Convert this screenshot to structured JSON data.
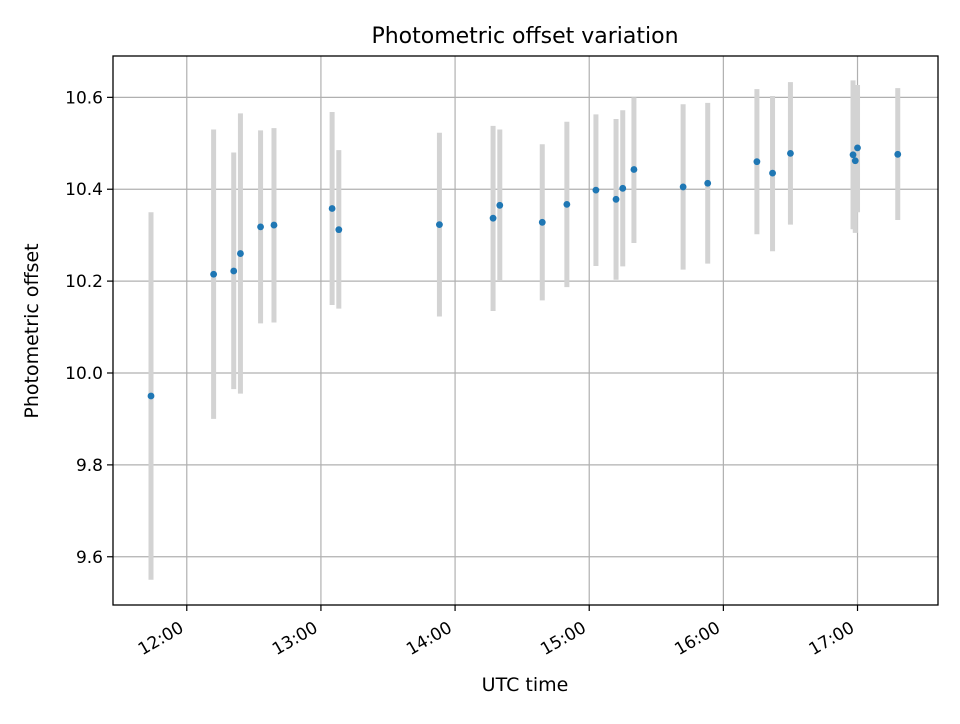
{
  "chart_data": {
    "type": "scatter",
    "title": "Photometric offset variation",
    "xlabel": "UTC time",
    "ylabel": "Photometric offset",
    "x_type": "time",
    "xlim": [
      "11:27",
      "17:36"
    ],
    "ylim": [
      9.495,
      10.69
    ],
    "x_ticks": [
      "12:00",
      "13:00",
      "14:00",
      "15:00",
      "16:00",
      "17:00"
    ],
    "y_ticks": [
      "9.6",
      "9.8",
      "10.0",
      "10.2",
      "10.4",
      "10.6"
    ],
    "grid": true,
    "colors": {
      "point": "#1f77b4",
      "errorbar": "#d3d3d3",
      "grid": "#b0b0b0"
    },
    "points": [
      {
        "time": "11:44",
        "y": 9.95,
        "err_low": 9.55,
        "err_high": 10.35
      },
      {
        "time": "12:12",
        "y": 10.215,
        "err_low": 9.9,
        "err_high": 10.53
      },
      {
        "time": "12:21",
        "y": 10.222,
        "err_low": 9.965,
        "err_high": 10.48
      },
      {
        "time": "12:24",
        "y": 10.26,
        "err_low": 9.955,
        "err_high": 10.565
      },
      {
        "time": "12:33",
        "y": 10.318,
        "err_low": 10.108,
        "err_high": 10.528
      },
      {
        "time": "12:39",
        "y": 10.322,
        "err_low": 10.11,
        "err_high": 10.533
      },
      {
        "time": "13:05",
        "y": 10.358,
        "err_low": 10.148,
        "err_high": 10.568
      },
      {
        "time": "13:08",
        "y": 10.312,
        "err_low": 10.14,
        "err_high": 10.485
      },
      {
        "time": "13:53",
        "y": 10.323,
        "err_low": 10.123,
        "err_high": 10.523
      },
      {
        "time": "14:17",
        "y": 10.337,
        "err_low": 10.135,
        "err_high": 10.538
      },
      {
        "time": "14:20",
        "y": 10.365,
        "err_low": 10.2,
        "err_high": 10.53
      },
      {
        "time": "14:39",
        "y": 10.328,
        "err_low": 10.158,
        "err_high": 10.498
      },
      {
        "time": "14:50",
        "y": 10.367,
        "err_low": 10.187,
        "err_high": 10.547
      },
      {
        "time": "15:03",
        "y": 10.398,
        "err_low": 10.233,
        "err_high": 10.563
      },
      {
        "time": "15:12",
        "y": 10.378,
        "err_low": 10.203,
        "err_high": 10.553
      },
      {
        "time": "15:15",
        "y": 10.402,
        "err_low": 10.232,
        "err_high": 10.572
      },
      {
        "time": "15:20",
        "y": 10.443,
        "err_low": 10.283,
        "err_high": 10.6
      },
      {
        "time": "15:42",
        "y": 10.405,
        "err_low": 10.225,
        "err_high": 10.585
      },
      {
        "time": "15:53",
        "y": 10.413,
        "err_low": 10.238,
        "err_high": 10.588
      },
      {
        "time": "16:15",
        "y": 10.46,
        "err_low": 10.302,
        "err_high": 10.618
      },
      {
        "time": "16:22",
        "y": 10.435,
        "err_low": 10.265,
        "err_high": 10.603
      },
      {
        "time": "16:30",
        "y": 10.478,
        "err_low": 10.323,
        "err_high": 10.633
      },
      {
        "time": "16:58",
        "y": 10.475,
        "err_low": 10.313,
        "err_high": 10.637
      },
      {
        "time": "16:59",
        "y": 10.462,
        "err_low": 10.305,
        "err_high": 10.62
      },
      {
        "time": "17:00",
        "y": 10.49,
        "err_low": 10.35,
        "err_high": 10.627
      },
      {
        "time": "17:18",
        "y": 10.476,
        "err_low": 10.333,
        "err_high": 10.62
      }
    ]
  }
}
